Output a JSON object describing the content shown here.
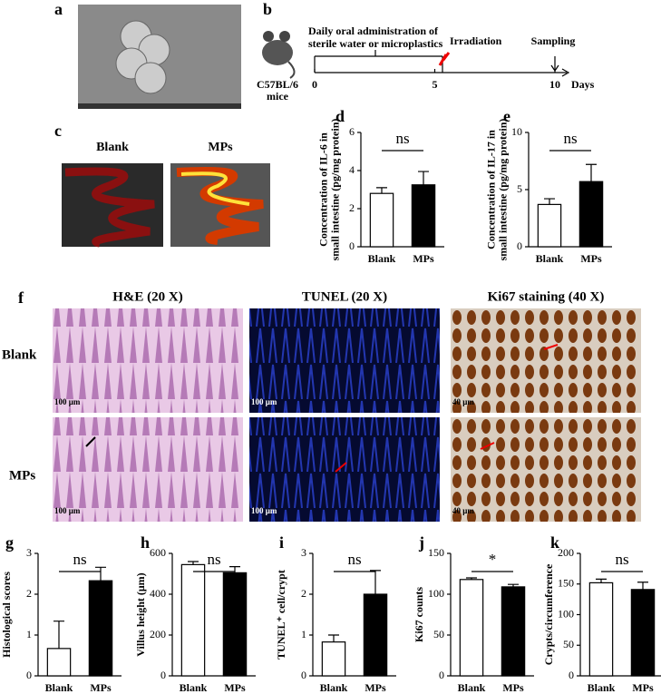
{
  "labels": [
    "a",
    "b",
    "c",
    "d",
    "e",
    "f",
    "g",
    "h",
    "i",
    "j",
    "k"
  ],
  "timeline": {
    "description": [
      "Daily oral administration of",
      "sterile water or microplastics"
    ],
    "mouse": [
      "C57BL/6",
      "mice"
    ],
    "events": [
      "Irradiation",
      "Sampling"
    ],
    "ticks": [
      0,
      5,
      10
    ],
    "unit": "Days"
  },
  "imaging": {
    "groups": [
      "Blank",
      "MPs"
    ]
  },
  "histology": {
    "columns": [
      "H&E (20 X)",
      "TUNEL (20 X)",
      "Ki67 staining (40 X)"
    ],
    "rows": [
      "Blank",
      "MPs"
    ],
    "scale_bars": [
      "100 μm",
      "100 μm",
      "40 μm"
    ]
  },
  "chart_data": [
    {
      "type": "bar",
      "ylabel": [
        "Concentration of IL-6 in",
        "small intestine (pg/mg protein)"
      ],
      "categories": [
        "Blank",
        "MPs"
      ],
      "values": [
        2.8,
        3.25
      ],
      "errors": [
        0.3,
        0.7
      ],
      "colors": [
        "#ffffff",
        "#000000"
      ],
      "ylim": [
        0,
        6
      ],
      "yticks": [
        0,
        2,
        4,
        6
      ],
      "annotation": "ns"
    },
    {
      "type": "bar",
      "ylabel": [
        "Concentration of IL-17 in",
        "small intestine (pg/mg protein)"
      ],
      "categories": [
        "Blank",
        "MPs"
      ],
      "values": [
        3.7,
        5.7
      ],
      "errors": [
        0.5,
        1.5
      ],
      "colors": [
        "#ffffff",
        "#000000"
      ],
      "ylim": [
        0,
        10
      ],
      "yticks": [
        0,
        5,
        10
      ],
      "annotation": "ns"
    },
    {
      "type": "bar",
      "ylabel": [
        "Histological scores"
      ],
      "categories": [
        "Blank",
        "MPs"
      ],
      "values": [
        0.67,
        2.33
      ],
      "errors": [
        0.67,
        0.33
      ],
      "colors": [
        "#ffffff",
        "#000000"
      ],
      "ylim": [
        0,
        3
      ],
      "yticks": [
        0,
        1,
        2,
        3
      ],
      "annotation": "ns"
    },
    {
      "type": "bar",
      "ylabel": [
        "Villus height (μm)"
      ],
      "categories": [
        "Blank",
        "MPs"
      ],
      "values": [
        545,
        505
      ],
      "errors": [
        15,
        30
      ],
      "colors": [
        "#ffffff",
        "#000000"
      ],
      "ylim": [
        0,
        600
      ],
      "yticks": [
        0,
        200,
        400,
        600
      ],
      "annotation": "ns"
    },
    {
      "type": "bar",
      "ylabel": [
        "TUNEL⁺ cell/crypt"
      ],
      "categories": [
        "Blank",
        "MPs"
      ],
      "values": [
        0.83,
        2.0
      ],
      "errors": [
        0.17,
        0.58
      ],
      "colors": [
        "#ffffff",
        "#000000"
      ],
      "ylim": [
        0,
        3
      ],
      "yticks": [
        0,
        1,
        2,
        3
      ],
      "annotation": "ns"
    },
    {
      "type": "bar",
      "ylabel": [
        "Ki67 counts"
      ],
      "categories": [
        "Blank",
        "MPs"
      ],
      "values": [
        118,
        109
      ],
      "errors": [
        2,
        3
      ],
      "colors": [
        "#ffffff",
        "#000000"
      ],
      "ylim": [
        0,
        150
      ],
      "yticks": [
        0,
        50,
        100,
        150
      ],
      "annotation": "*"
    },
    {
      "type": "bar",
      "ylabel": [
        "Crypts/circumference"
      ],
      "categories": [
        "Blank",
        "MPs"
      ],
      "values": [
        152,
        141
      ],
      "errors": [
        6,
        12
      ],
      "colors": [
        "#ffffff",
        "#000000"
      ],
      "ylim": [
        0,
        200
      ],
      "yticks": [
        0,
        50,
        100,
        150,
        200
      ],
      "annotation": "ns"
    }
  ]
}
